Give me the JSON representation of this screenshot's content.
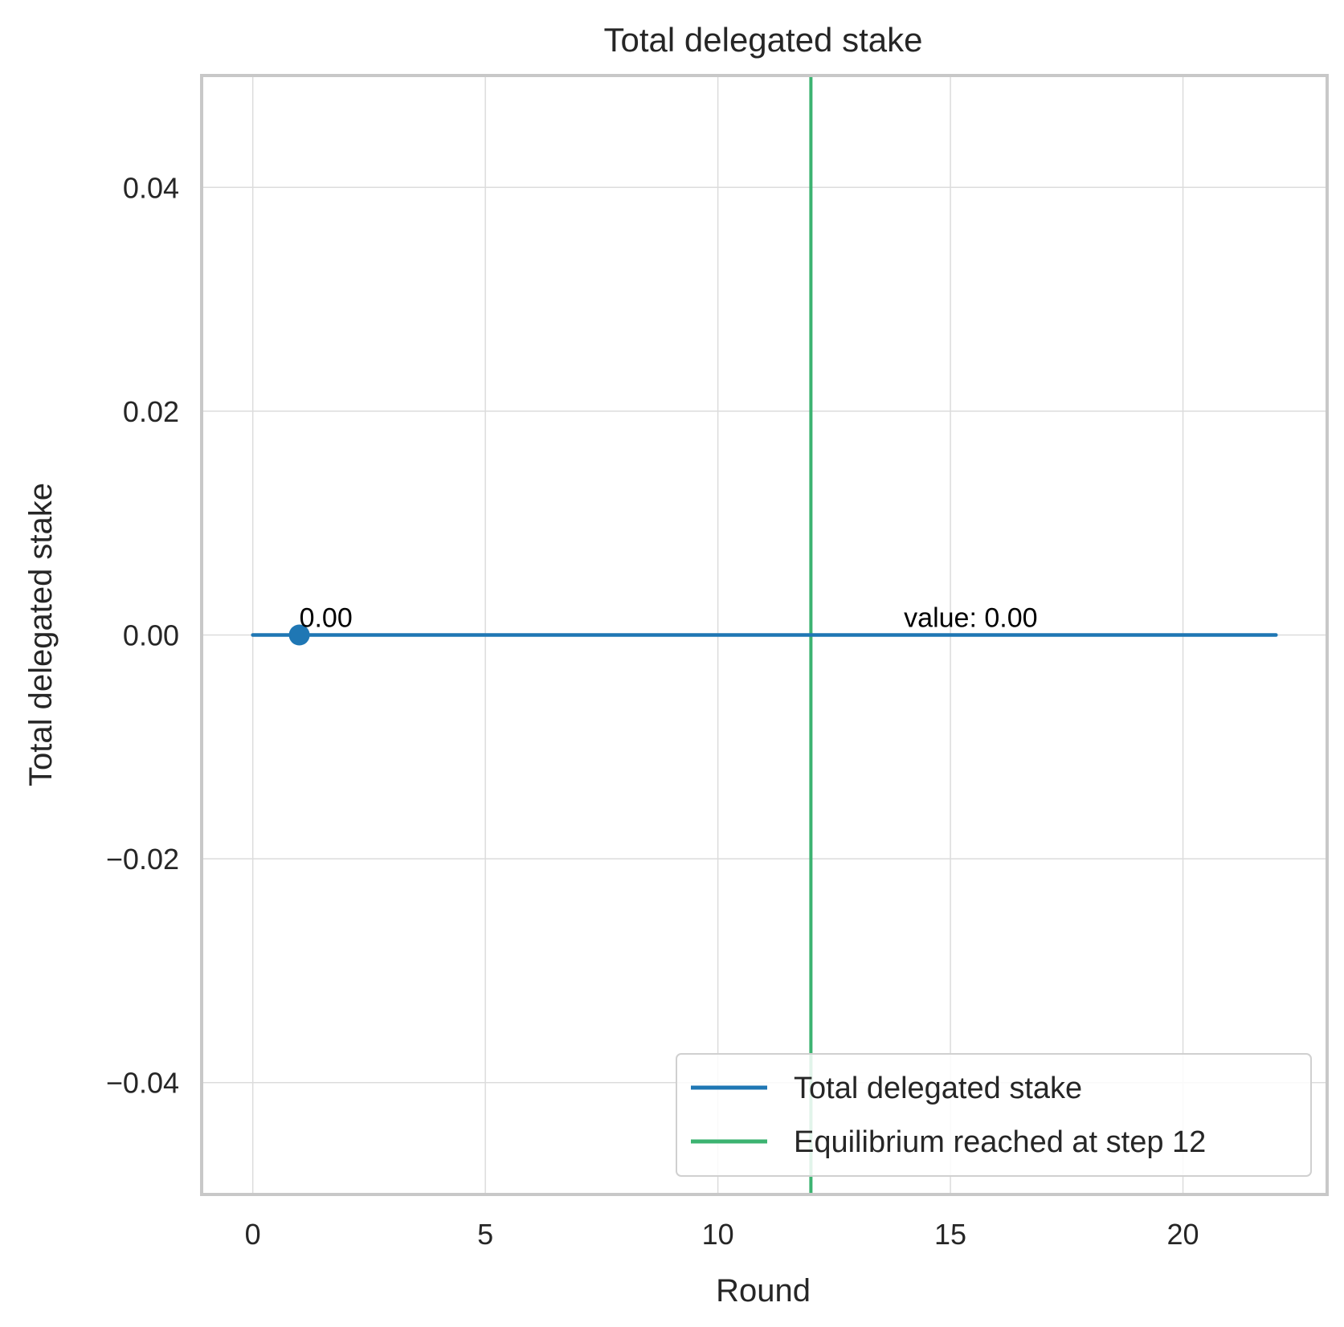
{
  "chart_data": {
    "type": "line",
    "title": "Total delegated stake",
    "xlabel": "Round",
    "ylabel": "Total delegated stake",
    "xlim": [
      -1.1,
      23.1
    ],
    "ylim": [
      -0.05,
      0.05
    ],
    "xticks": [
      0,
      5,
      10,
      15,
      20
    ],
    "yticks": [
      -0.04,
      -0.02,
      0.0,
      0.02,
      0.04
    ],
    "xtick_labels": [
      "0",
      "5",
      "10",
      "15",
      "20"
    ],
    "ytick_labels": [
      "−0.04",
      "−0.02",
      "0.00",
      "0.02",
      "0.04"
    ],
    "grid": true,
    "series": [
      {
        "name": "Total delegated stake",
        "color": "#1f77b4",
        "x": [
          0,
          22
        ],
        "y": [
          0.0,
          0.0
        ]
      }
    ],
    "marker": {
      "x": 1,
      "y": 0.0,
      "label": "0.00",
      "color": "#1f77b4"
    },
    "vline": {
      "x": 12,
      "name": "Equilibrium reached at step 12",
      "color": "#3cb371"
    },
    "annotations": [
      {
        "x": 14,
        "y": 0.0,
        "text": "value: 0.00"
      }
    ],
    "legend": {
      "position": "lower-right",
      "entries": [
        {
          "label": "Total delegated stake",
          "color": "#1f77b4"
        },
        {
          "label": "Equilibrium reached at step 12",
          "color": "#3cb371"
        }
      ]
    }
  }
}
